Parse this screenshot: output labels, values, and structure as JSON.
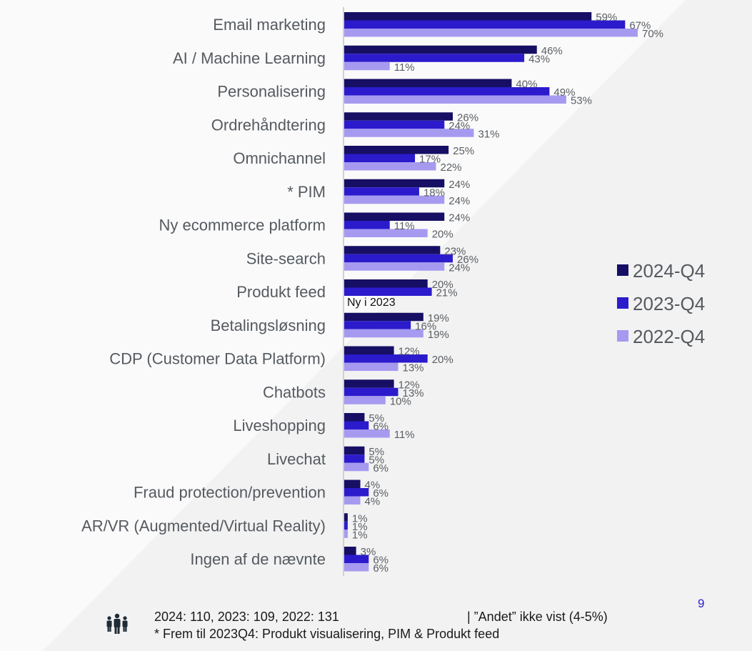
{
  "chart_data": {
    "type": "bar",
    "orientation": "horizontal",
    "title": "",
    "xlabel": "",
    "ylabel": "",
    "xlim": [
      0,
      70
    ],
    "grid": false,
    "legend_position": "right",
    "categories": [
      "Email marketing",
      "AI / Machine Learning",
      "Personalisering",
      "Ordrehåndtering",
      "Omnichannel",
      "* PIM",
      "Ny ecommerce platform",
      "Site-search",
      "Produkt feed",
      "Betalingsløsning",
      "CDP (Customer Data Platform)",
      "Chatbots",
      "Liveshopping",
      "Livechat",
      "Fraud protection/prevention",
      "AR/VR (Augmented/Virtual Reality)",
      "Ingen af de nævnte"
    ],
    "series": [
      {
        "name": "2024-Q4",
        "color": "#160f64",
        "values": [
          59,
          46,
          40,
          26,
          25,
          24,
          24,
          23,
          20,
          19,
          12,
          12,
          5,
          5,
          4,
          1,
          3
        ]
      },
      {
        "name": "2023-Q4",
        "color": "#2b1bcc",
        "values": [
          67,
          43,
          49,
          24,
          17,
          18,
          11,
          26,
          21,
          16,
          20,
          13,
          6,
          5,
          6,
          1,
          6
        ]
      },
      {
        "name": "2022-Q4",
        "color": "#a69af0",
        "values": [
          70,
          11,
          53,
          31,
          22,
          24,
          20,
          24,
          null,
          19,
          13,
          10,
          11,
          6,
          4,
          1,
          6
        ]
      }
    ],
    "value_suffix": "%",
    "annotations": [
      {
        "category": "Produkt feed",
        "series": "2022-Q4",
        "text": "Ny i 2023"
      }
    ]
  },
  "footer": {
    "sample_sizes": "2024: 110, 2023: 109, 2022: 131",
    "note": "| ”Andet” ikke vist (4-5%)",
    "footnote": "* Frem til 2023Q4: Produkt visualisering, PIM & Produkt feed",
    "icon": "people-group-icon"
  },
  "page_number": "9"
}
